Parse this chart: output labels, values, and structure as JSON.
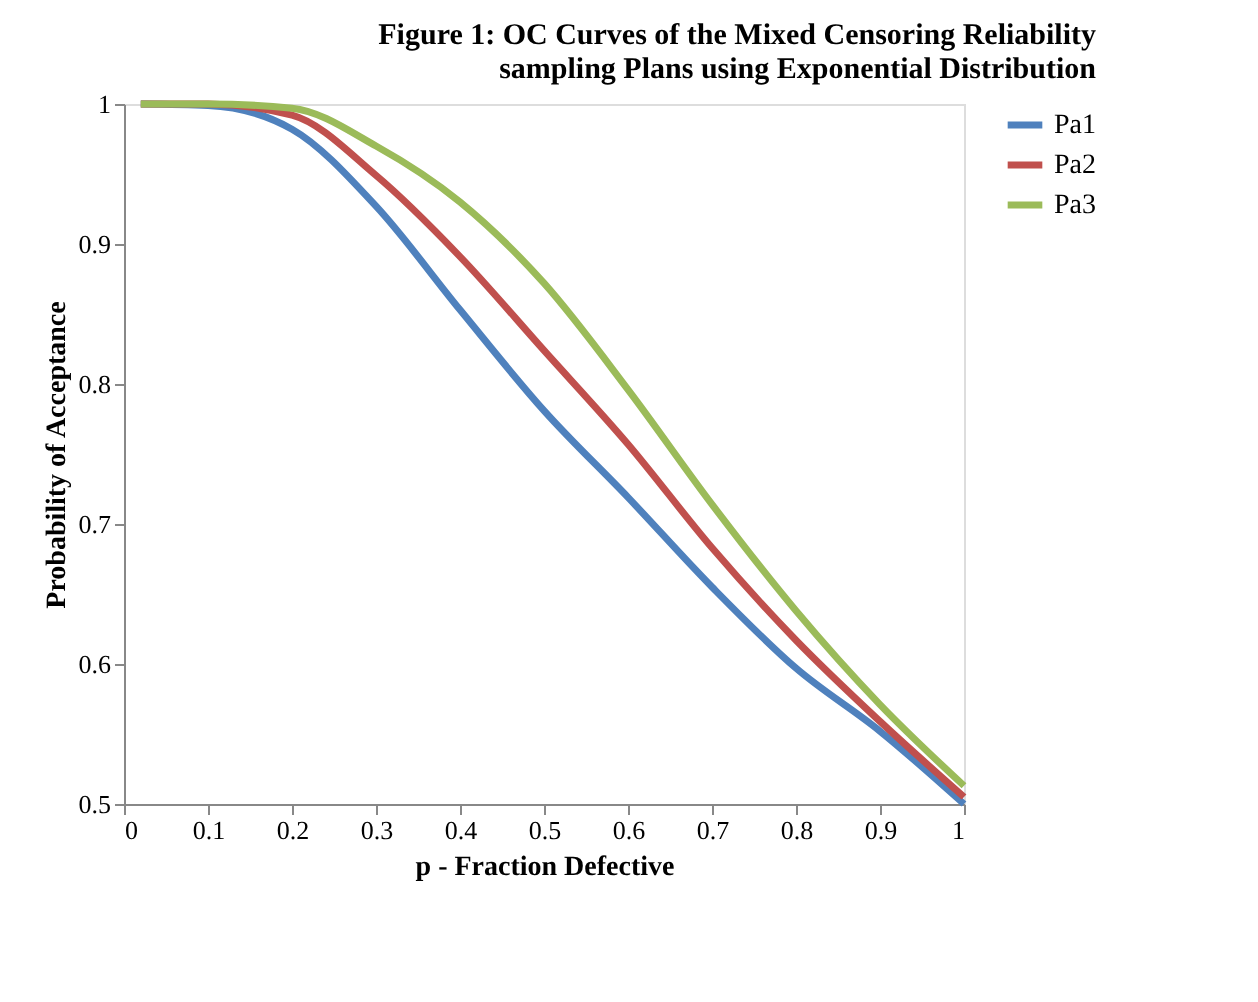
{
  "chart_data": {
    "type": "line",
    "title": [
      "Figure 1: OC Curves of the Mixed  Censoring Reliability",
      "sampling  Plans using Exponential  Distribution"
    ],
    "xlabel": "p - Fraction  Defective",
    "ylabel": "Probability  of Acceptance",
    "x": [
      0.02,
      0.1,
      0.2,
      0.3,
      0.4,
      0.5,
      0.6,
      0.7,
      0.8,
      0.9,
      1.0
    ],
    "series": [
      {
        "name": "Pa1",
        "color": "#4f81bd",
        "values": [
          1.0,
          0.999,
          0.982,
          0.927,
          0.853,
          0.781,
          0.719,
          0.655,
          0.597,
          0.552,
          0.5
        ]
      },
      {
        "name": "Pa2",
        "color": "#c0504d",
        "values": [
          1.0,
          1.0,
          0.992,
          0.949,
          0.891,
          0.824,
          0.757,
          0.683,
          0.617,
          0.559,
          0.505
        ]
      },
      {
        "name": "Pa3",
        "color": "#9bbb59",
        "values": [
          1.0,
          1.0,
          0.997,
          0.97,
          0.93,
          0.872,
          0.796,
          0.714,
          0.638,
          0.571,
          0.513
        ]
      }
    ],
    "xlim": [
      0,
      1
    ],
    "xticks": [
      0,
      0.1,
      0.2,
      0.3,
      0.4,
      0.5,
      0.6,
      0.7,
      0.8,
      0.9,
      1
    ],
    "ylim": [
      0.5,
      1
    ],
    "yticks": [
      0.5,
      0.6,
      0.7,
      0.8,
      0.9,
      1
    ],
    "grid": false,
    "legend": "right",
    "marker": "none",
    "line_style": "solid"
  }
}
